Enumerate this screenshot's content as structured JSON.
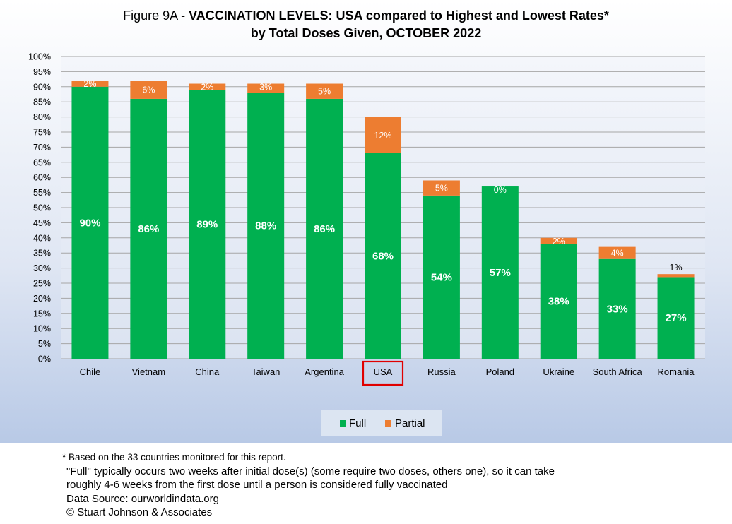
{
  "chart_data": {
    "type": "bar",
    "stacked": true,
    "title_prefix": "Figure 9A - ",
    "title_bold_line1": "VACCINATION LEVELS:  USA compared to Highest and Lowest Rates*",
    "title_line2": "by Total Doses Given, OCTOBER 2022",
    "categories": [
      "Chile",
      "Vietnam",
      "China",
      "Taiwan",
      "Argentina",
      "USA",
      "Russia",
      "Poland",
      "Ukraine",
      "South Africa",
      "Romania"
    ],
    "highlighted_category": "USA",
    "series": [
      {
        "name": "Full",
        "color": "#00b050",
        "values": [
          90,
          86,
          89,
          88,
          86,
          68,
          54,
          57,
          38,
          33,
          27
        ],
        "labels": [
          "90%",
          "86%",
          "89%",
          "88%",
          "86%",
          "68%",
          "54%",
          "57%",
          "38%",
          "33%",
          "27%"
        ]
      },
      {
        "name": "Partial",
        "color": "#ed7d31",
        "values": [
          2,
          6,
          2,
          3,
          5,
          12,
          5,
          0,
          2,
          4,
          1
        ],
        "labels": [
          "2%",
          "6%",
          "2%",
          "3%",
          "5%",
          "12%",
          "5%",
          "0%",
          "2%",
          "4%",
          "1%"
        ]
      }
    ],
    "ylim": [
      0,
      100
    ],
    "yticks": [
      "0%",
      "5%",
      "10%",
      "15%",
      "20%",
      "25%",
      "30%",
      "35%",
      "40%",
      "45%",
      "50%",
      "55%",
      "60%",
      "65%",
      "70%",
      "75%",
      "80%",
      "85%",
      "90%",
      "95%",
      "100%"
    ],
    "grid": true,
    "legend_position": "bottom"
  },
  "footnotes": {
    "asterisk": "* Based on the 33 countries monitored for this report.",
    "line1": "\"Full\" typically occurs two weeks after initial dose(s) (some require two doses, others one),  so it can take",
    "line2": "roughly 4-6 weeks from the first dose until a person is considered fully vaccinated",
    "source": "Data Source:  ourworldindata.org",
    "copyright": "© Stuart Johnson & Associates"
  }
}
